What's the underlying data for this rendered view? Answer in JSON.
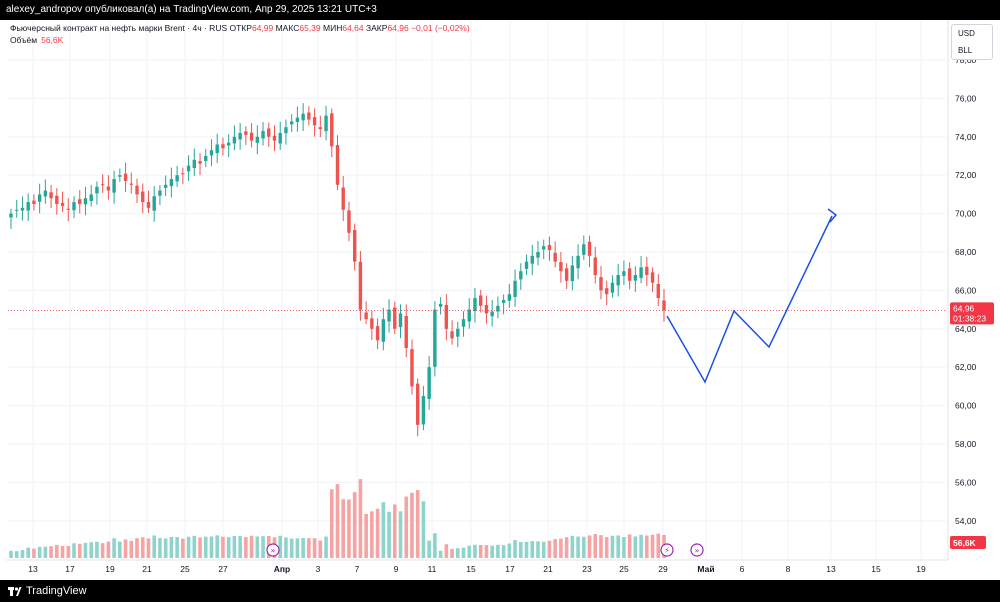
{
  "header": {
    "publisher_line": "alexey_andropov опубликовал(а) на TradingView.com, Апр 29, 2025 13:21 UTC+3"
  },
  "legend": {
    "symbol": "Фьючерсный контракт на нефть марки Brent · 4ч · RUS",
    "open_label": "ОТКР",
    "open_value": "64,99",
    "high_label": "МАКС",
    "high_value": "65,39",
    "low_label": "МИН",
    "low_value": "64,64",
    "close_label": "ЗАКР",
    "close_value": "64,96",
    "change": "−0,01 (−0,02%)",
    "volume_label": "Объём",
    "volume_value": "56,6K"
  },
  "currency": {
    "line1": "USD",
    "line2": "BLL"
  },
  "price_tag": {
    "price": "64,96",
    "countdown": "01:38:23"
  },
  "volume_tag": "56,6K",
  "footer": {
    "brand": "TradingView"
  },
  "colors": {
    "up": "#26a69a",
    "down": "#ef5350",
    "vol_up": "#8fd4cc",
    "vol_down": "#f5a3a3",
    "projection": "#1e50e6",
    "price_line": "#f23645"
  },
  "chart_data": {
    "type": "candlestick",
    "interval": "4h",
    "y_axis_ticks": [
      "78,00",
      "76,00",
      "74,00",
      "72,00",
      "70,00",
      "68,00",
      "66,00",
      "64,00",
      "62,00",
      "60,00",
      "58,00",
      "56,00",
      "54,00"
    ],
    "ylim": [
      53,
      79
    ],
    "x_axis_ticks": [
      "13",
      "17",
      "19",
      "21",
      "25",
      "27",
      "Апр",
      "3",
      "7",
      "9",
      "11",
      "15",
      "17",
      "21",
      "23",
      "25",
      "29",
      "Май",
      "6",
      "8",
      "13",
      "15",
      "19"
    ],
    "candle_closes_approx": [
      70.0,
      70.2,
      70.3,
      70.6,
      70.5,
      71.0,
      71.2,
      70.8,
      70.5,
      70.4,
      70.2,
      70.6,
      70.5,
      70.8,
      71.0,
      71.4,
      71.5,
      71.2,
      71.8,
      72.0,
      71.7,
      71.5,
      71.0,
      70.6,
      70.3,
      70.9,
      71.2,
      71.5,
      71.8,
      72.0,
      72.1,
      72.5,
      72.8,
      72.6,
      73.0,
      73.3,
      73.6,
      73.4,
      73.7,
      74.0,
      74.2,
      74.1,
      73.8,
      74.0,
      74.3,
      74.0,
      73.8,
      74.2,
      74.5,
      74.8,
      75.0,
      75.2,
      74.9,
      74.6,
      74.4,
      75.1,
      73.5,
      71.5,
      70.2,
      69.0,
      67.5,
      65.0,
      64.5,
      64.0,
      63.4,
      64.5,
      65.0,
      64.0,
      64.8,
      63.0,
      61.0,
      59.0,
      60.5,
      62.0,
      65.0,
      65.3,
      64.0,
      63.5,
      64.0,
      64.5,
      65.0,
      65.6,
      65.2,
      64.8,
      64.9,
      65.2,
      65.5,
      65.8,
      66.5,
      67.0,
      67.5,
      67.8,
      68.0,
      68.3,
      68.1,
      67.5,
      67.0,
      66.5,
      67.3,
      67.8,
      68.4,
      67.8,
      66.8,
      66.0,
      65.8,
      66.4,
      66.8,
      67.0,
      66.5,
      66.8,
      67.2,
      66.8,
      66.4,
      65.6,
      64.96
    ],
    "volume_series_name": "Объём",
    "last_price": 64.96,
    "projection": {
      "points": [
        {
          "x": "29",
          "y": 64.9
        },
        {
          "x": "Май 3",
          "y": 61.3
        },
        {
          "x": "Май 6",
          "y": 65.0
        },
        {
          "x": "Май 8",
          "y": 63.1
        },
        {
          "x": "13",
          "y": 70.0
        }
      ]
    }
  }
}
